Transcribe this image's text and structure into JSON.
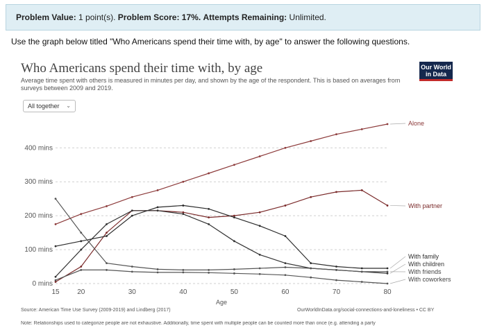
{
  "problem": {
    "value_label": "Problem Value:",
    "value": "1 point(s).",
    "score_label": "Problem Score:",
    "score": "17%.",
    "attempts_label": "Attempts Remaining:",
    "attempts": "Unlimited."
  },
  "instructions": "Use the graph below titled \"Who Americans spend their time with, by age\" to answer the following questions.",
  "chart_card": {
    "title": "Who Americans spend their time with, by age",
    "subtitle": "Average time spent with others is measured in minutes per day, and shown by the age of the respondent. This is based on averages from surveys between 2009 and 2019.",
    "logo_line1": "Our World",
    "logo_line2": "in Data",
    "dropdown_value": "All together",
    "source": "Source: American Time Use Survey (2009-2019) and Lindberg (2017)",
    "source_url": "OurWorldInData.org/social-connections-and-loneliness • CC BY",
    "note": "Note: Relationships used to categorize people are not exhaustive. Additionally, time spent with multiple people can be counted more than once (e.g. attending a party"
  },
  "chart_data": {
    "type": "line",
    "xlabel": "Age",
    "ylabel": "",
    "x_ticks": [
      15,
      20,
      30,
      40,
      50,
      60,
      70,
      80
    ],
    "y_ticks": [
      {
        "value": 0,
        "label": "0 mins"
      },
      {
        "value": 100,
        "label": "100 mins"
      },
      {
        "value": 200,
        "label": "200 mins"
      },
      {
        "value": 300,
        "label": "300 mins"
      },
      {
        "value": 400,
        "label": "400 mins"
      }
    ],
    "xlim": [
      15,
      80
    ],
    "ylim": [
      0,
      470
    ],
    "x": [
      15,
      20,
      25,
      30,
      35,
      40,
      45,
      50,
      55,
      60,
      65,
      70,
      75,
      80
    ],
    "series": [
      {
        "name": "Alone",
        "color": "#8c3a3a",
        "values": [
          175,
          205,
          228,
          255,
          275,
          300,
          325,
          350,
          375,
          400,
          420,
          440,
          455,
          470
        ]
      },
      {
        "name": "With partner",
        "color": "#7a2a2a",
        "values": [
          5,
          50,
          150,
          215,
          215,
          210,
          195,
          200,
          210,
          230,
          255,
          270,
          275,
          230
        ]
      },
      {
        "name": "With family",
        "color": "#2b2b2b",
        "values": [
          110,
          125,
          140,
          200,
          225,
          230,
          220,
          195,
          170,
          140,
          60,
          50,
          45,
          45
        ]
      },
      {
        "name": "With children",
        "color": "#333333",
        "values": [
          20,
          100,
          175,
          215,
          215,
          205,
          175,
          125,
          85,
          60,
          45,
          40,
          35,
          30
        ]
      },
      {
        "name": "With friends",
        "color": "#555555",
        "values": [
          250,
          150,
          60,
          50,
          42,
          40,
          40,
          42,
          45,
          48,
          45,
          40,
          35,
          35
        ]
      },
      {
        "name": "With coworkers",
        "color": "#555555",
        "values": [
          10,
          40,
          40,
          35,
          33,
          33,
          32,
          30,
          28,
          25,
          18,
          10,
          5,
          0
        ]
      }
    ],
    "grid": true,
    "legend": "right"
  }
}
